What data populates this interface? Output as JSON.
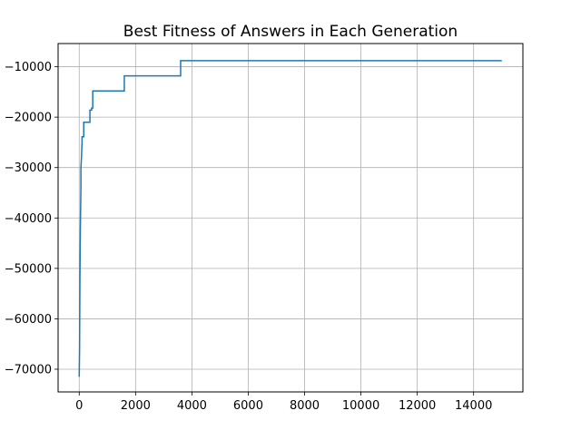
{
  "chart_data": {
    "type": "line",
    "title": "Best Fitness of Answers in Each Generation",
    "xlabel": "",
    "ylabel": "",
    "xlim": [
      -750,
      15750
    ],
    "ylim": [
      -74500,
      -5400
    ],
    "grid": true,
    "legend": "none",
    "x_ticks": [
      0,
      2000,
      4000,
      6000,
      8000,
      10000,
      12000,
      14000
    ],
    "x_tick_labels": [
      "0",
      "2000",
      "4000",
      "6000",
      "8000",
      "10000",
      "12000",
      "14000"
    ],
    "y_ticks": [
      -70000,
      -60000,
      -50000,
      -40000,
      -30000,
      -20000,
      -10000
    ],
    "y_tick_labels": [
      "−70000",
      "−60000",
      "−50000",
      "−40000",
      "−30000",
      "−20000",
      "−10000"
    ],
    "series": [
      {
        "name": "",
        "color": "#1f77b4",
        "x": [
          0,
          12,
          25,
          40,
          60,
          60,
          80,
          95,
          100,
          100,
          160,
          160,
          380,
          380,
          440,
          440,
          480,
          480,
          1600,
          1600,
          3600,
          3600,
          15000
        ],
        "y": [
          -71500,
          -66000,
          -52000,
          -42000,
          -34000,
          -30000,
          -28000,
          -25500,
          -25500,
          -23900,
          -23900,
          -21000,
          -21000,
          -18600,
          -18600,
          -18200,
          -18200,
          -14800,
          -14800,
          -11800,
          -11800,
          -8800,
          -8800
        ]
      }
    ]
  }
}
